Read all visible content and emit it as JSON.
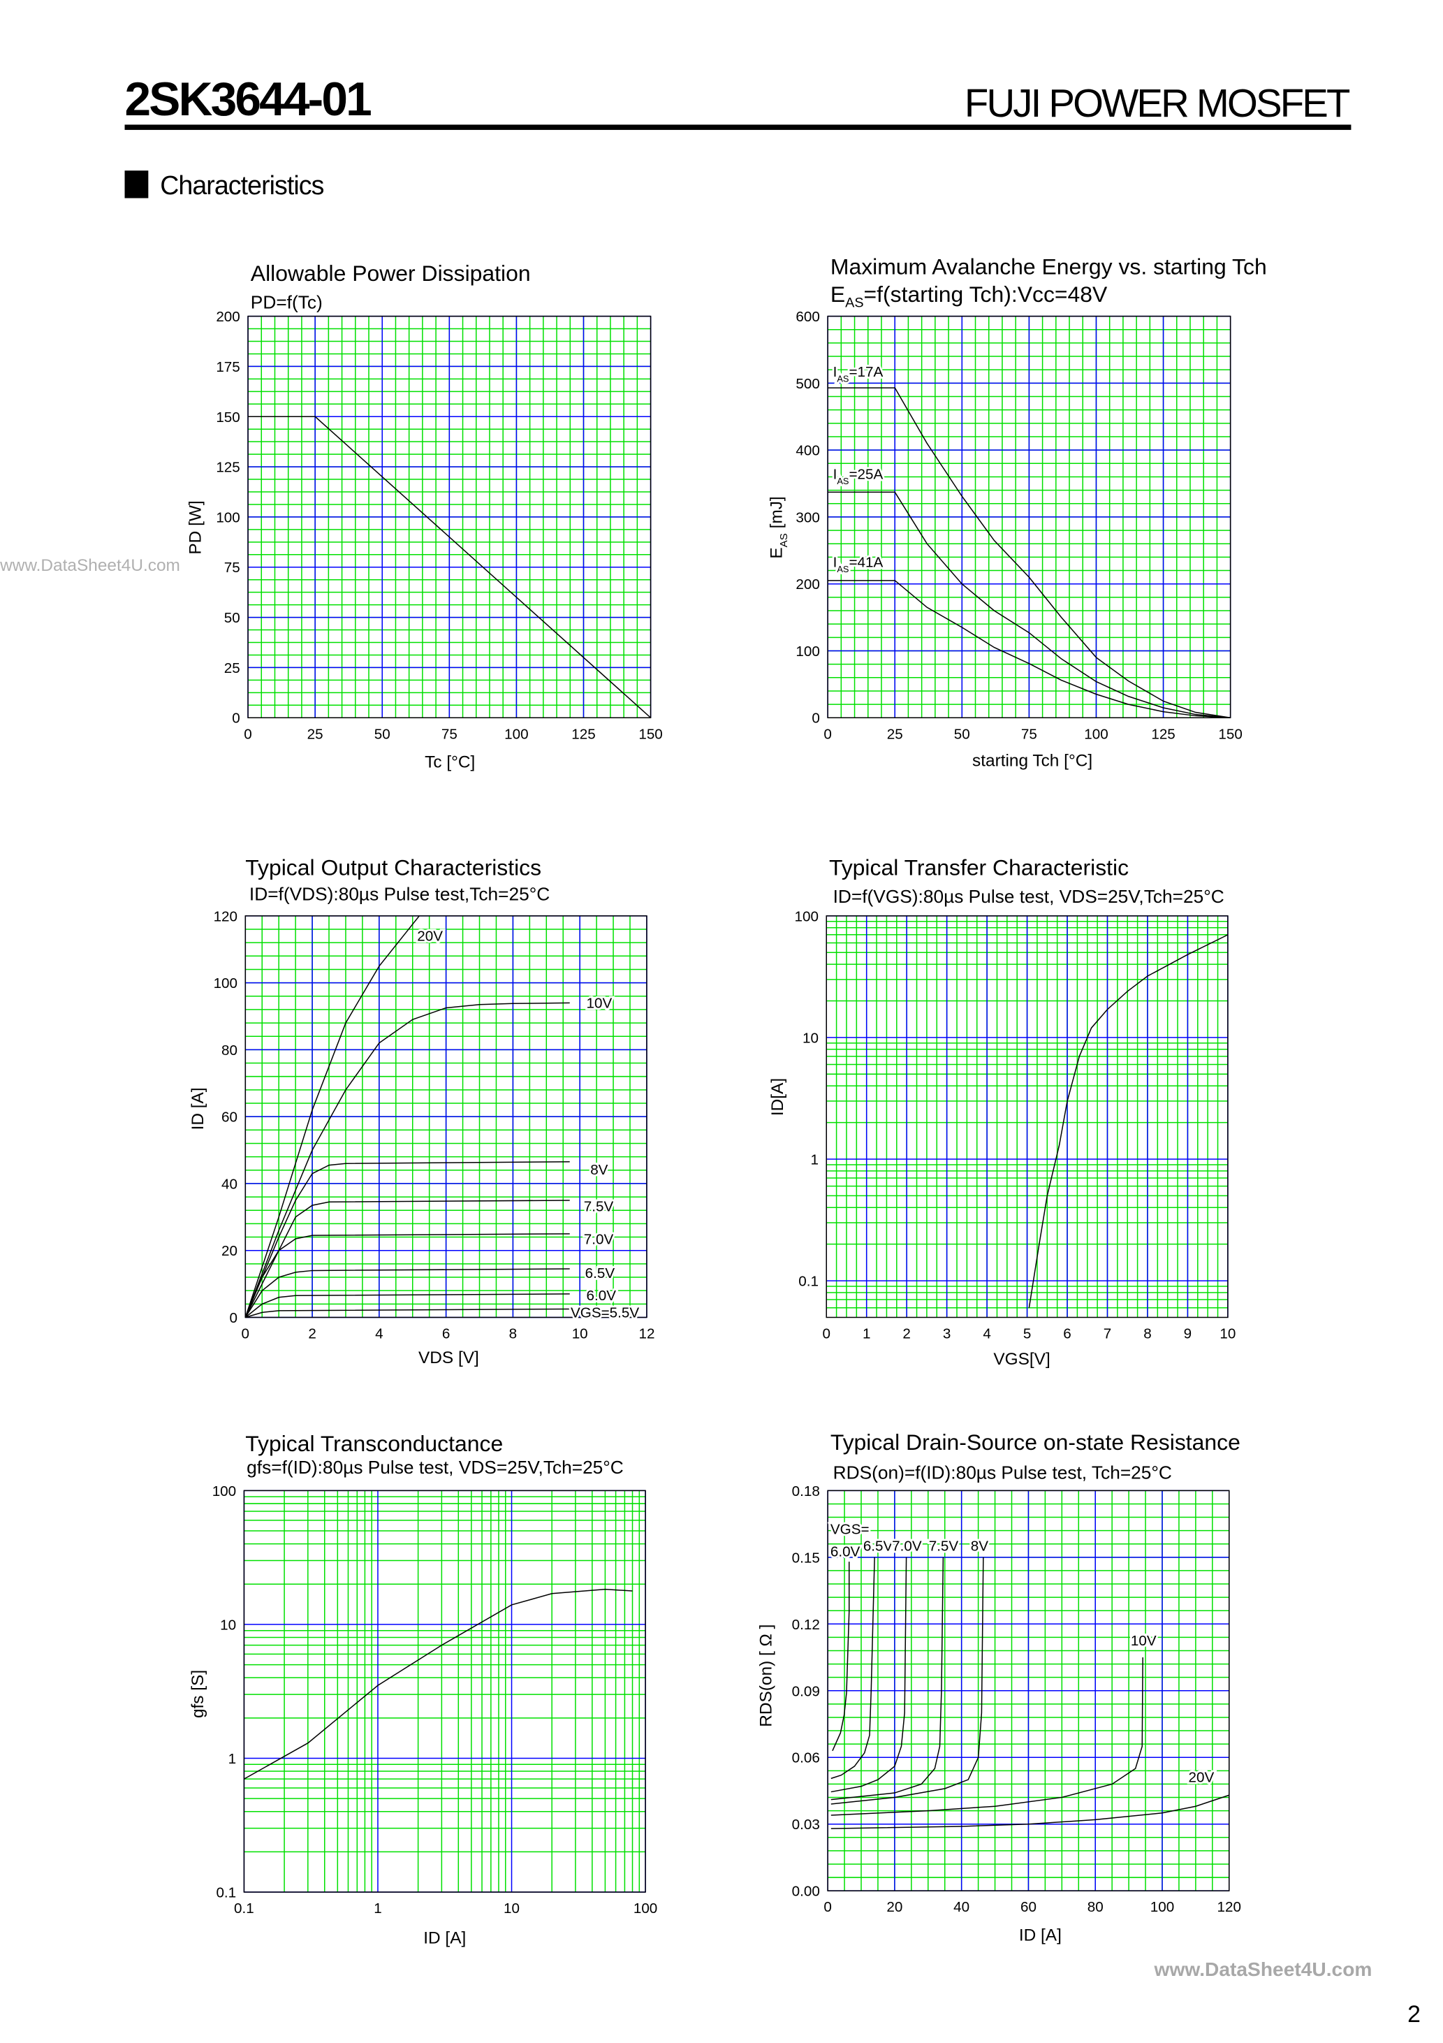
{
  "header": {
    "part_number": "2SK3644-01",
    "brand": "FUJI POWER MOSFET"
  },
  "section": {
    "title": "Characteristics"
  },
  "watermark": {
    "left": "www.DataSheet4U.com",
    "bottom": "www.DataSheet4U.com"
  },
  "page_number": "2",
  "colors": {
    "minor_grid": "#00e000",
    "major_grid": "#0000ff",
    "curve": "#000000"
  },
  "chart_data": [
    {
      "type": "line",
      "title": "Allowable Power Dissipation",
      "subtitle": "PD=f(Tc)",
      "xlabel": "Tc [°C]",
      "ylabel": "PD [W]",
      "xlim": [
        0,
        150
      ],
      "ylim": [
        0,
        200
      ],
      "xticks": [
        0,
        25,
        50,
        75,
        100,
        125,
        150
      ],
      "yticks": [
        0,
        25,
        50,
        75,
        100,
        125,
        150,
        175,
        200
      ],
      "grid": true,
      "series": [
        {
          "x": [
            0,
            25,
            150
          ],
          "y": [
            150,
            150,
            0
          ]
        }
      ]
    },
    {
      "type": "line",
      "title": "Maximum Avalanche Energy vs. starting Tch",
      "subtitle": {
        "main": "E",
        "sub": "AS",
        "rest": "=f(starting Tch):Vcc=48V"
      },
      "xlabel": "starting Tch [°C]",
      "ylabel": {
        "main": "E",
        "sub": "AS",
        "rest": " [mJ]"
      },
      "xlim": [
        0,
        150
      ],
      "ylim": [
        0,
        600
      ],
      "xticks": [
        0,
        25,
        50,
        75,
        100,
        125,
        150
      ],
      "yticks": [
        0,
        100,
        200,
        300,
        400,
        500,
        600
      ],
      "grid": true,
      "series": [
        {
          "name": {
            "main": "I",
            "sub": "AS",
            "rest": "=17A"
          },
          "x": [
            0,
            25,
            37,
            50,
            62,
            75,
            87,
            100,
            112,
            125,
            137,
            150
          ],
          "y": [
            493,
            493,
            410,
            331,
            265,
            210,
            150,
            90,
            55,
            25,
            8,
            0
          ]
        },
        {
          "name": {
            "main": "I",
            "sub": "AS",
            "rest": "=25A"
          },
          "x": [
            0,
            25,
            37,
            50,
            62,
            75,
            87,
            100,
            112,
            125,
            137,
            150
          ],
          "y": [
            337,
            337,
            260,
            200,
            160,
            127,
            88,
            54,
            32,
            15,
            5,
            0
          ]
        },
        {
          "name": {
            "main": "I",
            "sub": "AS",
            "rest": "=41A"
          },
          "x": [
            0,
            25,
            37,
            50,
            62,
            75,
            87,
            100,
            112,
            125,
            137,
            150
          ],
          "y": [
            205,
            205,
            165,
            135,
            105,
            81,
            56,
            35,
            20,
            9,
            3,
            0
          ]
        }
      ]
    },
    {
      "type": "line",
      "title": "Typical Output Characteristics",
      "subtitle": "ID=f(VDS):80µs Pulse test,Tch=25°C",
      "xlabel": "VDS [V]",
      "ylabel": "ID [A]",
      "xlim": [
        0,
        12
      ],
      "ylim": [
        0,
        120
      ],
      "xticks": [
        0,
        2,
        4,
        6,
        8,
        10,
        12
      ],
      "yticks": [
        0,
        20,
        40,
        60,
        80,
        100,
        120
      ],
      "grid": true,
      "series": [
        {
          "name": "20V",
          "x": [
            0,
            1,
            2,
            3,
            4,
            5.2
          ],
          "y": [
            0,
            30,
            62,
            88,
            105,
            120
          ]
        },
        {
          "name": "10V",
          "x": [
            0,
            1,
            2,
            3,
            4,
            5,
            6,
            7,
            8,
            9.7
          ],
          "y": [
            0,
            26,
            50,
            68,
            82,
            89,
            92.5,
            93.5,
            93.8,
            94
          ]
        },
        {
          "name": "8V",
          "x": [
            0,
            1,
            1.5,
            2,
            2.5,
            3,
            9.7
          ],
          "y": [
            0,
            24,
            35,
            43,
            45.5,
            46,
            46.5
          ]
        },
        {
          "name": "7.5V",
          "x": [
            0,
            1,
            1.5,
            2,
            2.5,
            9.7
          ],
          "y": [
            0,
            20,
            30,
            33.5,
            34.5,
            35
          ]
        },
        {
          "name": "7.0V",
          "x": [
            0,
            0.5,
            1,
            1.5,
            2,
            9.7
          ],
          "y": [
            0,
            12,
            20,
            23.5,
            24.5,
            25
          ]
        },
        {
          "name": "6.5V",
          "x": [
            0,
            0.5,
            1,
            1.5,
            2,
            9.7
          ],
          "y": [
            0,
            8,
            12,
            13.5,
            14,
            14.5
          ]
        },
        {
          "name": "6.0V",
          "x": [
            0,
            0.5,
            1,
            1.5,
            9.7
          ],
          "y": [
            0,
            4,
            6,
            6.5,
            7
          ]
        },
        {
          "name": "VGS=5.5V",
          "x": [
            0,
            0.5,
            1,
            9.7
          ],
          "y": [
            0,
            1.5,
            2,
            2.5
          ]
        }
      ]
    },
    {
      "type": "line",
      "title": "Typical Transfer Characteristic",
      "subtitle": "ID=f(VGS):80µs Pulse test, VDS=25V,Tch=25°C",
      "xlabel": "VGS[V]",
      "ylabel": "ID[A]",
      "xlim": [
        0,
        10
      ],
      "ylim": [
        0.05,
        100
      ],
      "yscale": "log",
      "xticks": [
        0,
        1,
        2,
        3,
        4,
        5,
        6,
        7,
        8,
        9,
        10
      ],
      "yticks": [
        0.1,
        1,
        10,
        100
      ],
      "grid": true,
      "series": [
        {
          "x": [
            5.05,
            5.3,
            5.5,
            5.8,
            6.0,
            6.3,
            6.6,
            7,
            7.5,
            8,
            9,
            10
          ],
          "y": [
            0.06,
            0.2,
            0.5,
            1.3,
            3,
            7,
            12,
            17,
            24,
            32,
            48,
            70
          ]
        }
      ]
    },
    {
      "type": "line",
      "title": "Typical Transconductance",
      "subtitle": "gfs=f(ID):80µs Pulse test, VDS=25V,Tch=25°C",
      "xlabel": "ID [A]",
      "ylabel": "gfs [S]",
      "xlim": [
        0.1,
        100
      ],
      "ylim": [
        0.1,
        100
      ],
      "xscale": "log",
      "yscale": "log",
      "xticks": [
        0.1,
        1,
        10,
        100
      ],
      "yticks": [
        0.1,
        1,
        10,
        100
      ],
      "grid": true,
      "series": [
        {
          "x": [
            0.1,
            0.3,
            1,
            3,
            10,
            20,
            50,
            80
          ],
          "y": [
            0.7,
            1.3,
            3.5,
            7,
            14,
            17,
            18.3,
            17.8
          ]
        }
      ]
    },
    {
      "type": "line",
      "title": "Typical Drain-Source on-state Resistance",
      "subtitle": "RDS(on)=f(ID):80µs Pulse test, Tch=25°C",
      "xlabel": "ID [A]",
      "ylabel": "RDS(on) [ Ω ]",
      "xlim": [
        0,
        120
      ],
      "ylim": [
        0,
        0.18
      ],
      "xticks": [
        0,
        20,
        40,
        60,
        80,
        100,
        120
      ],
      "yticks": [
        "0.00",
        "0.03",
        "0.06",
        "0.09",
        "0.12",
        "0.15",
        "0.18"
      ],
      "grid": true,
      "legend_prefix": "VGS=",
      "series": [
        {
          "name": "6.0V",
          "x": [
            1.4,
            3.8,
            4.9,
            5.6,
            6.4,
            6.4
          ],
          "y": [
            0.063,
            0.071,
            0.079,
            0.089,
            0.1255,
            0.148
          ]
        },
        {
          "name": "6.5V",
          "x": [
            1,
            4,
            8,
            11,
            12.5,
            13,
            14
          ],
          "y": [
            0.0505,
            0.052,
            0.056,
            0.062,
            0.07,
            0.09,
            0.15
          ]
        },
        {
          "name": "7.0V",
          "x": [
            1,
            10,
            15,
            20,
            22,
            23,
            23.5
          ],
          "y": [
            0.0445,
            0.047,
            0.05,
            0.056,
            0.065,
            0.08,
            0.15
          ]
        },
        {
          "name": "7.5V",
          "x": [
            1,
            20,
            28,
            32,
            33.5,
            34,
            34.5
          ],
          "y": [
            0.041,
            0.044,
            0.048,
            0.055,
            0.065,
            0.09,
            0.15
          ]
        },
        {
          "name": "8V",
          "x": [
            1,
            20,
            35,
            42,
            45,
            46,
            46.5
          ],
          "y": [
            0.039,
            0.042,
            0.046,
            0.05,
            0.06,
            0.08,
            0.15
          ]
        },
        {
          "name": "10V",
          "x": [
            1,
            30,
            50,
            70,
            85,
            92,
            94,
            94.2
          ],
          "y": [
            0.034,
            0.036,
            0.038,
            0.042,
            0.048,
            0.055,
            0.065,
            0.105
          ]
        },
        {
          "name": "20V",
          "x": [
            1,
            40,
            60,
            80,
            100,
            110,
            120
          ],
          "y": [
            0.028,
            0.029,
            0.03,
            0.032,
            0.035,
            0.038,
            0.043
          ]
        }
      ]
    }
  ]
}
